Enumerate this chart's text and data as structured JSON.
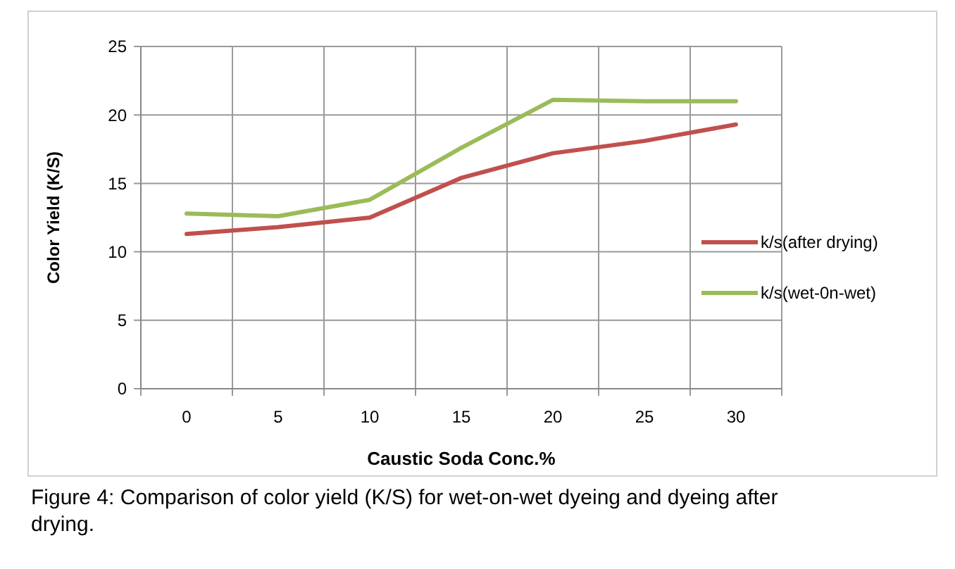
{
  "chart_data": {
    "type": "line",
    "xlabel": "Caustic Soda Conc.%",
    "ylabel": "Color Yield (K/S)",
    "categories": [
      "0",
      "5",
      "10",
      "15",
      "20",
      "25",
      "30"
    ],
    "series": [
      {
        "name": "k/s(after drying)",
        "color": "#c0504d",
        "values": [
          11.3,
          11.8,
          12.5,
          15.4,
          17.2,
          18.1,
          19.3
        ]
      },
      {
        "name": "k/s(wet-0n-wet)",
        "color": "#9bbb59",
        "values": [
          12.8,
          12.6,
          13.8,
          17.6,
          21.1,
          21.0,
          21.0
        ]
      }
    ],
    "ylim": [
      0,
      25
    ],
    "yticks": [
      0,
      5,
      10,
      15,
      20,
      25
    ],
    "grid": true,
    "legend": "right",
    "marker": "none",
    "line_style": "solid",
    "annotations": [
      "Figure 4: Comparison of color yield (K/S) for wet-on-wet dyeing and dyeing after drying."
    ]
  }
}
